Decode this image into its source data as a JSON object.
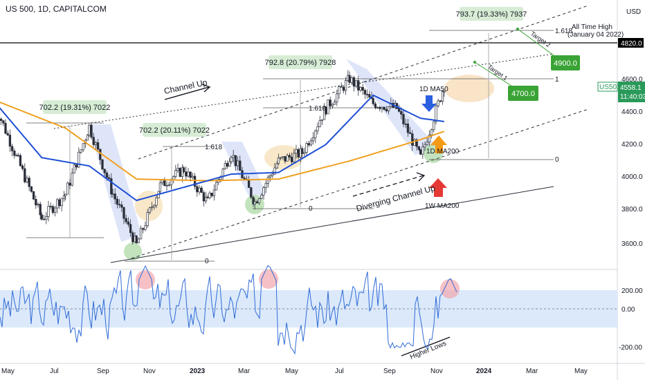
{
  "header": {
    "title": "US 500, 1D, CAPITALCOM"
  },
  "price_axis": {
    "currency": "USD",
    "ticks": [
      "4600.0",
      "4400.0",
      "4200.0",
      "4000.0",
      "3800.0",
      "3600.0"
    ],
    "current_symbol": "US500",
    "current_price": "4558.1",
    "countdown": "11:40:03",
    "ath_label": "4820.0"
  },
  "osc_axis": {
    "ticks": [
      "200.00",
      "0.00",
      "-200.00"
    ]
  },
  "time_axis": {
    "labels": [
      "May",
      "Jul",
      "Sep",
      "Nov",
      "2023",
      "Mar",
      "May",
      "Jul",
      "Sep",
      "Nov",
      "2024",
      "Mar",
      "May"
    ]
  },
  "annotations": {
    "box1": "702.2 (19.31%) 7022",
    "box2": "702.2 (20.11%) 7022",
    "box3": "792.8 (20.79%) 7928",
    "box4": "793.7 (19.33%) 7937",
    "fib_1618_a": "1.618",
    "fib_1618_b": "1.618",
    "fib_1618_c": "1.618",
    "fib_0_a": "0",
    "fib_0_b": "0",
    "fib_0_c": "0",
    "fib_1": "1",
    "channel_up": "Channel Up",
    "diverging": "Diverging Channel Up",
    "ma50": "1D MA50",
    "ma200": "1D MA200",
    "w_ma200": "1W MA200",
    "ath_line1": "All Time High",
    "ath_line2": "(January 04 2022)",
    "target1": "Target 1",
    "target2": "Target 2",
    "target_box_4700": "4700.0",
    "target_box_4900": "4900.0",
    "higher_lows": "Higher Lows"
  },
  "colors": {
    "price": "#2a2e39",
    "ma50": "#1e4fd6",
    "ma200": "#f0a020",
    "osc": "#2f6bd6",
    "osc_band": "#dbe9fb",
    "green_box": "#3aa335",
    "label_box": "#d7ecd4",
    "trendline": "#2a2e39",
    "ath_line": "#000000"
  },
  "chart_data": {
    "type": "line",
    "title": "US 500, 1D, CAPITALCOM",
    "ylim": [
      3500,
      4950
    ],
    "series": [
      {
        "name": "",
        "x": [
          "2022-04",
          "2022-05",
          "2022-06",
          "2022-07",
          "2022-08",
          "2022-09",
          "2022-10",
          "2022-11",
          "2022-12",
          "2023-01",
          "2023-02",
          "2023-03",
          "2023-04",
          "2023-05",
          "2023-06",
          "2023-07",
          "2023-08",
          "2023-09",
          "2023-10",
          "2023-11"
        ],
        "values": [
          4450,
          4100,
          3750,
          3900,
          4310,
          3900,
          3590,
          3950,
          4050,
          3850,
          4150,
          3850,
          4100,
          4150,
          4420,
          4600,
          4450,
          4420,
          4120,
          4558
        ]
      },
      {
        "name": "1D MA50",
        "x": [
          "2022-04",
          "2022-06",
          "2022-08",
          "2022-10",
          "2022-12",
          "2023-02",
          "2023-04",
          "2023-06",
          "2023-08",
          "2023-10",
          "2023-11"
        ],
        "values": [
          4460,
          4120,
          4070,
          3860,
          3940,
          4020,
          4030,
          4200,
          4500,
          4360,
          4340
        ]
      },
      {
        "name": "1D MA200",
        "x": [
          "2022-04",
          "2022-07",
          "2022-10",
          "2023-01",
          "2023-04",
          "2023-07",
          "2023-10",
          "2023-11"
        ],
        "values": [
          4470,
          4300,
          3990,
          3980,
          3990,
          4100,
          4230,
          4280
        ]
      }
    ],
    "oscillator": {
      "ylim": [
        -250,
        250
      ],
      "band": [
        -100,
        100
      ],
      "ticks": [
        200,
        0,
        -200
      ]
    }
  }
}
